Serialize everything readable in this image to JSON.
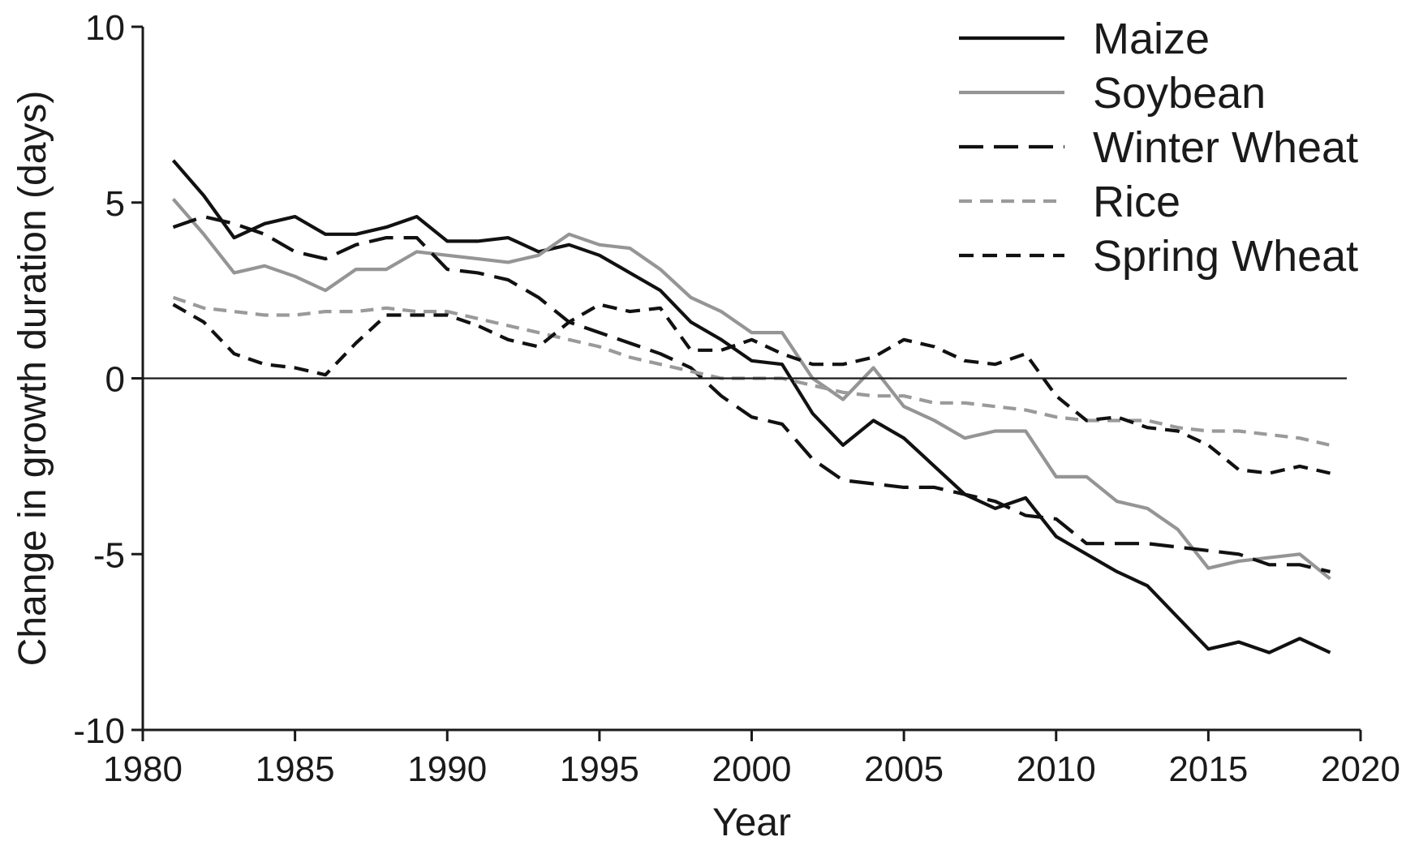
{
  "chart_data": {
    "type": "line",
    "xlabel": "Year",
    "ylabel": "Change in growth duration (days)",
    "xlim": [
      1980,
      2020
    ],
    "ylim": [
      -10,
      10
    ],
    "x_ticks": [
      1980,
      1985,
      1990,
      1995,
      2000,
      2005,
      2010,
      2015,
      2020
    ],
    "y_ticks": [
      -10,
      -5,
      0,
      5,
      10
    ],
    "zero_line": true,
    "grid": false,
    "legend_position": "top-right",
    "x": [
      1981,
      1982,
      1983,
      1984,
      1985,
      1986,
      1987,
      1988,
      1989,
      1990,
      1991,
      1992,
      1993,
      1994,
      1995,
      1996,
      1997,
      1998,
      1999,
      2000,
      2001,
      2002,
      2003,
      2004,
      2005,
      2006,
      2007,
      2008,
      2009,
      2010,
      2011,
      2012,
      2013,
      2014,
      2015,
      2016,
      2017,
      2018,
      2019
    ],
    "series": [
      {
        "name": "Maize",
        "color": "#111111",
        "dash": "solid",
        "values": [
          6.2,
          5.2,
          4.0,
          4.4,
          4.6,
          4.1,
          4.1,
          4.3,
          4.6,
          3.9,
          3.9,
          4.0,
          3.6,
          3.8,
          3.5,
          3.0,
          2.5,
          1.6,
          1.1,
          0.5,
          0.4,
          -1.0,
          -1.9,
          -1.2,
          -1.7,
          -2.5,
          -3.3,
          -3.7,
          -3.4,
          -4.5,
          -5.0,
          -5.5,
          -5.9,
          -6.8,
          -7.7,
          -7.5,
          -7.8,
          -7.4,
          -7.8
        ]
      },
      {
        "name": "Soybean",
        "color": "#959595",
        "dash": "solid",
        "values": [
          5.1,
          4.1,
          3.0,
          3.2,
          2.9,
          2.5,
          3.1,
          3.1,
          3.6,
          3.5,
          3.4,
          3.3,
          3.5,
          4.1,
          3.8,
          3.7,
          3.1,
          2.3,
          1.9,
          1.3,
          1.3,
          0.0,
          -0.6,
          0.3,
          -0.8,
          -1.2,
          -1.7,
          -1.5,
          -1.5,
          -2.8,
          -2.8,
          -3.5,
          -3.7,
          -4.3,
          -5.4,
          -5.2,
          -5.1,
          -5.0,
          -5.7
        ]
      },
      {
        "name": "Winter Wheat",
        "color": "#111111",
        "dash": "long",
        "values": [
          4.3,
          4.6,
          4.4,
          4.1,
          3.6,
          3.4,
          3.8,
          4.0,
          4.0,
          3.1,
          3.0,
          2.8,
          2.3,
          1.6,
          1.3,
          1.0,
          0.7,
          0.3,
          -0.5,
          -1.1,
          -1.3,
          -2.3,
          -2.9,
          -3.0,
          -3.1,
          -3.1,
          -3.3,
          -3.5,
          -3.9,
          -4.0,
          -4.7,
          -4.7,
          -4.7,
          -4.8,
          -4.9,
          -5.0,
          -5.3,
          -5.3,
          -5.5
        ]
      },
      {
        "name": "Rice",
        "color": "#9a9a9a",
        "dash": "short",
        "values": [
          2.3,
          2.0,
          1.9,
          1.8,
          1.8,
          1.9,
          1.9,
          2.0,
          1.9,
          1.9,
          1.7,
          1.5,
          1.3,
          1.1,
          0.9,
          0.6,
          0.4,
          0.2,
          0.0,
          0.0,
          0.0,
          -0.2,
          -0.4,
          -0.5,
          -0.5,
          -0.7,
          -0.7,
          -0.8,
          -0.9,
          -1.1,
          -1.2,
          -1.2,
          -1.2,
          -1.4,
          -1.5,
          -1.5,
          -1.6,
          -1.7,
          -1.9
        ]
      },
      {
        "name": "Spring Wheat",
        "color": "#111111",
        "dash": "medium",
        "values": [
          2.1,
          1.6,
          0.7,
          0.4,
          0.3,
          0.1,
          1.0,
          1.8,
          1.8,
          1.8,
          1.5,
          1.1,
          0.9,
          1.6,
          2.1,
          1.9,
          2.0,
          0.8,
          0.8,
          1.1,
          0.7,
          0.4,
          0.4,
          0.6,
          1.1,
          0.9,
          0.5,
          0.4,
          0.7,
          -0.5,
          -1.2,
          -1.1,
          -1.4,
          -1.5,
          -1.9,
          -2.6,
          -2.7,
          -2.5,
          -2.7
        ]
      }
    ]
  }
}
